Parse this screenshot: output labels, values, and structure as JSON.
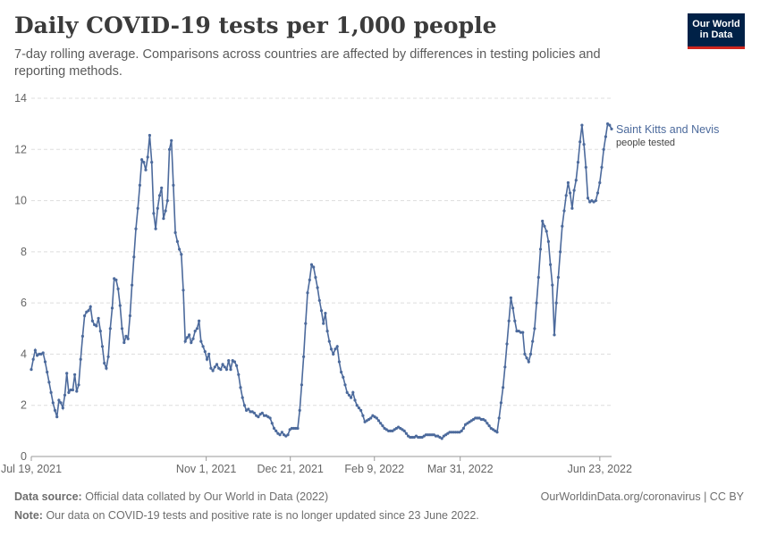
{
  "header": {
    "title": "Daily COVID-19 tests per 1,000 people",
    "subtitle": "7-day rolling average. Comparisons across countries are affected by differences in testing policies and reporting methods."
  },
  "logo": {
    "line1": "Our World",
    "line2": "in Data"
  },
  "footer": {
    "source_label": "Data source:",
    "source_text": "Official data collated by Our World in Data (2022)",
    "right_text": "OurWorldinData.org/coronavirus | CC BY",
    "note_label": "Note:",
    "note_text": "Our data on COVID-19 tests and positive rate is no longer updated since 23 June 2022."
  },
  "colors": {
    "series": "#4c6a9c",
    "grid": "#dddddd",
    "axis": "#666666"
  },
  "chart_data": {
    "type": "line",
    "title": "Daily COVID-19 tests per 1,000 people",
    "xlabel": "",
    "ylabel": "",
    "ylim": [
      0,
      14
    ],
    "yticks": [
      0,
      2,
      4,
      6,
      8,
      10,
      12,
      14
    ],
    "xlim_days": [
      0,
      345
    ],
    "xticks": [
      {
        "day": 0,
        "label": "Jul 19, 2021"
      },
      {
        "day": 104,
        "label": "Nov 1, 2021"
      },
      {
        "day": 154,
        "label": "Dec 21, 2021"
      },
      {
        "day": 204,
        "label": "Feb 9, 2022"
      },
      {
        "day": 255,
        "label": "Mar 31, 2022"
      },
      {
        "day": 338,
        "label": "Jun 23, 2022"
      }
    ],
    "grid": "horizontal-dashed",
    "series": [
      {
        "name": "Saint Kitts and Nevis",
        "sublabel": "people tested",
        "start_date": "2021-07-15",
        "values": [
          3.4,
          3.8,
          4.15,
          3.95,
          4.0,
          4.0,
          4.05,
          3.7,
          3.3,
          2.9,
          2.5,
          2.1,
          1.8,
          1.55,
          2.2,
          2.1,
          1.9,
          2.4,
          3.25,
          2.5,
          2.6,
          2.6,
          3.2,
          2.55,
          2.8,
          3.8,
          4.7,
          5.5,
          5.65,
          5.7,
          5.85,
          5.3,
          5.15,
          5.1,
          5.4,
          4.9,
          4.3,
          3.65,
          3.45,
          3.9,
          5.0,
          5.8,
          6.95,
          6.9,
          6.55,
          5.9,
          5.0,
          4.45,
          4.7,
          4.6,
          5.5,
          6.7,
          7.8,
          8.9,
          9.7,
          10.6,
          11.6,
          11.5,
          11.2,
          11.7,
          12.55,
          11.5,
          9.5,
          8.9,
          9.7,
          10.2,
          10.5,
          9.3,
          9.6,
          10.0,
          12.0,
          12.35,
          10.6,
          8.75,
          8.4,
          8.1,
          7.9,
          6.5,
          4.5,
          4.65,
          4.75,
          4.45,
          4.6,
          4.9,
          5.0,
          5.3,
          4.5,
          4.3,
          4.1,
          3.8,
          4.0,
          3.45,
          3.35,
          3.5,
          3.6,
          3.45,
          3.4,
          3.6,
          3.5,
          3.4,
          3.75,
          3.4,
          3.75,
          3.7,
          3.55,
          3.2,
          2.7,
          2.3,
          2.0,
          1.8,
          1.85,
          1.75,
          1.75,
          1.7,
          1.6,
          1.55,
          1.65,
          1.7,
          1.6,
          1.6,
          1.55,
          1.5,
          1.3,
          1.1,
          1.0,
          0.9,
          0.85,
          0.95,
          0.85,
          0.8,
          0.85,
          1.05,
          1.1,
          1.1,
          1.1,
          1.1,
          1.8,
          2.8,
          3.9,
          5.2,
          6.4,
          6.9,
          7.5,
          7.4,
          7.0,
          6.6,
          6.1,
          5.7,
          5.2,
          5.6,
          4.9,
          4.5,
          4.2,
          4.0,
          4.2,
          4.3,
          3.7,
          3.3,
          3.1,
          2.8,
          2.5,
          2.4,
          2.3,
          2.5,
          2.2,
          2.0,
          1.9,
          1.8,
          1.6,
          1.35,
          1.4,
          1.45,
          1.5,
          1.6,
          1.55,
          1.5,
          1.4,
          1.3,
          1.2,
          1.1,
          1.05,
          1.0,
          1.0,
          1.0,
          1.05,
          1.1,
          1.15,
          1.1,
          1.05,
          1.0,
          0.9,
          0.8,
          0.75,
          0.75,
          0.75,
          0.8,
          0.75,
          0.75,
          0.75,
          0.8,
          0.85,
          0.85,
          0.85,
          0.85,
          0.85,
          0.8,
          0.8,
          0.75,
          0.7,
          0.8,
          0.85,
          0.9,
          0.95,
          0.95,
          0.95,
          0.95,
          0.95,
          0.95,
          1.0,
          1.1,
          1.25,
          1.3,
          1.35,
          1.4,
          1.45,
          1.5,
          1.5,
          1.5,
          1.45,
          1.45,
          1.4,
          1.3,
          1.2,
          1.1,
          1.05,
          1.0,
          0.95,
          1.5,
          2.1,
          2.7,
          3.5,
          4.4,
          5.3,
          6.2,
          5.8,
          5.3,
          4.9,
          4.9,
          4.85,
          4.85,
          4.0,
          3.85,
          3.7,
          4.0,
          4.5,
          5.0,
          6.0,
          7.0,
          8.1,
          9.2,
          9.0,
          8.8,
          8.4,
          7.5,
          6.7,
          4.75,
          6.0,
          7.0,
          8.0,
          9.0,
          9.6,
          10.2,
          10.7,
          10.3,
          9.7,
          10.4,
          10.8,
          11.5,
          12.3,
          12.95,
          12.2,
          11.3,
          10.1,
          9.95,
          10.0,
          9.95,
          10.0,
          10.3,
          10.7,
          11.3,
          12.0,
          12.5,
          13.0,
          12.95,
          12.8
        ]
      }
    ]
  }
}
